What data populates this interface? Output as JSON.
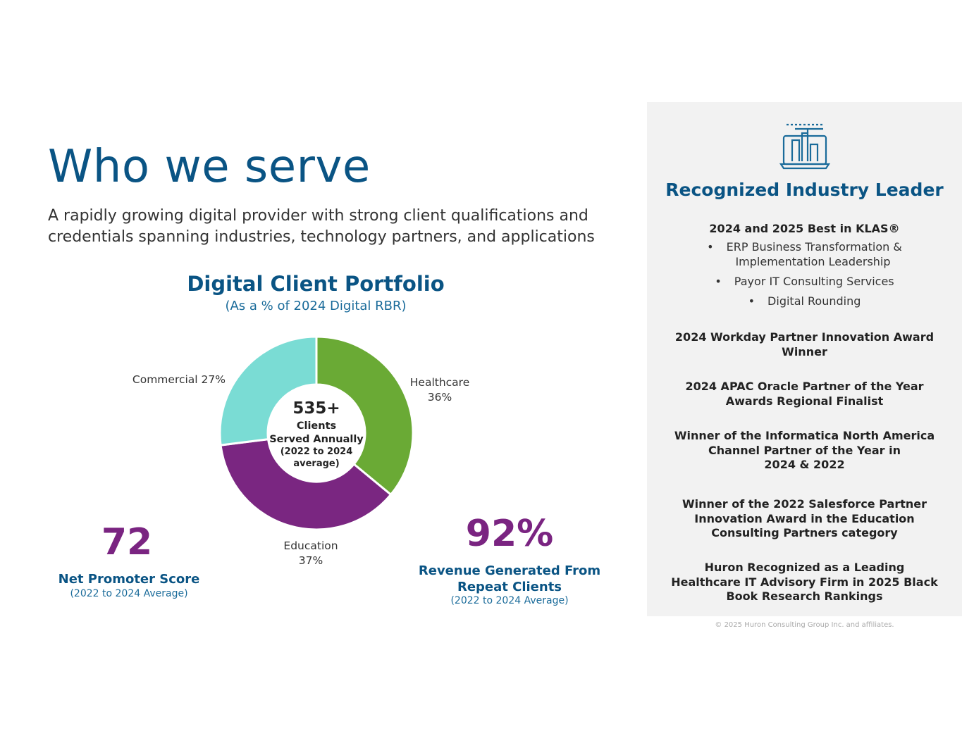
{
  "header": {
    "title": "Who we serve",
    "subtitle": "A rapidly growing digital provider with strong client qualifications and credentials spanning industries, technology partners, and applications"
  },
  "chart_data": {
    "type": "pie",
    "title": "Digital Client Portfolio",
    "subtitle": "(As a % of 2024 Digital RBR)",
    "categories": [
      "Healthcare",
      "Education",
      "Commercial"
    ],
    "values": [
      36,
      37,
      27
    ],
    "labels": [
      "Healthcare\n36%",
      "Education\n37%",
      "Commercial 27%"
    ],
    "colors": [
      "#6aaa35",
      "#7a2681",
      "#7adcd4"
    ],
    "center": {
      "value": "535+",
      "line1": "Clients",
      "line2": "Served Annually",
      "line3": "(2022 to 2024",
      "line4": "average)"
    }
  },
  "stats": {
    "nps": {
      "value": "72",
      "label": "Net Promoter Score",
      "note": "(2022 to 2024 Average)"
    },
    "repeat": {
      "value": "92%",
      "label_line1": "Revenue Generated From",
      "label_line2": "Repeat Clients",
      "note": "(2022 to 2024 Average)"
    }
  },
  "panel": {
    "icon": "computer-network-icon",
    "title": "Recognized Industry Leader",
    "klas_heading": "2024 and 2025 Best in KLAS®",
    "klas_items": [
      {
        "line1": "ERP Business Transformation &",
        "line2": "Implementation Leadership"
      },
      {
        "line1": "Payor IT Consulting Services",
        "line2": ""
      },
      {
        "line1": "Digital Rounding",
        "line2": ""
      }
    ],
    "bullet_char": "•",
    "awards": [
      {
        "line1": "2024 Workday Partner Innovation Award",
        "line2": "Winner",
        "line3": ""
      },
      {
        "line1": "2024 APAC Oracle Partner of the Year",
        "line2": "Awards Regional Finalist",
        "line3": ""
      },
      {
        "line1": "Winner of the Informatica North America",
        "line2": "Channel Partner of the Year in",
        "line3": "2024 & 2022"
      },
      {
        "line1": "Winner of the 2022 Salesforce Partner",
        "line2": "Innovation Award in the Education",
        "line3": "Consulting Partners category"
      },
      {
        "line1": "Huron Recognized as a Leading",
        "line2": "Healthcare IT Advisory Firm in 2025 Black",
        "line3": "Book Research Rankings"
      }
    ]
  },
  "footer": {
    "copyright": "© 2025 Huron Consulting Group Inc. and affiliates."
  }
}
